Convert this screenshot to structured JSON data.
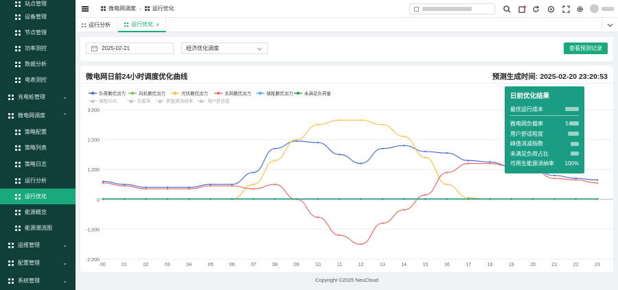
{
  "sidebar": {
    "items": [
      {
        "label": "站点管理",
        "type": "child",
        "active": false
      },
      {
        "label": "设备管理",
        "type": "child",
        "active": false
      },
      {
        "label": "节点管理",
        "type": "child",
        "active": false
      },
      {
        "label": "功率测控",
        "type": "child",
        "active": false
      },
      {
        "label": "数据分析",
        "type": "child",
        "active": false
      },
      {
        "label": "电表测控",
        "type": "child",
        "active": false
      },
      {
        "label": "充电桩管理",
        "type": "parent",
        "active": false,
        "chevron": "chevron-down-icon"
      },
      {
        "label": "微电网调度",
        "type": "parent",
        "active": false,
        "chevron": "chevron-up-icon"
      },
      {
        "label": "策略配置",
        "type": "child",
        "active": false
      },
      {
        "label": "策略列表",
        "type": "child",
        "active": false
      },
      {
        "label": "策略日志",
        "type": "child",
        "active": false
      },
      {
        "label": "运行分析",
        "type": "child",
        "active": false
      },
      {
        "label": "运行优化",
        "type": "child",
        "active": true
      },
      {
        "label": "能源概览",
        "type": "child",
        "active": false
      },
      {
        "label": "能源潮流图",
        "type": "child",
        "active": false
      },
      {
        "label": "运维管理",
        "type": "parent",
        "active": false,
        "chevron": "chevron-down-icon"
      },
      {
        "label": "配置管理",
        "type": "parent",
        "active": false,
        "chevron": "chevron-down-icon"
      },
      {
        "label": "系统管理",
        "type": "parent",
        "active": false,
        "chevron": "chevron-down-icon"
      }
    ]
  },
  "header": {
    "breadcrumb_1": "微电网调度",
    "breadcrumb_sep": "›",
    "breadcrumb_2": "运行优化"
  },
  "tabs": [
    {
      "label": "运行分析",
      "active": false
    },
    {
      "label": "运行优化",
      "active": true,
      "close": "×"
    }
  ],
  "filter": {
    "date": "2025-02-21",
    "mode": "经济优化调度",
    "button": "查看预测记录"
  },
  "card": {
    "title": "微电网日前24小时调度优化曲线",
    "time_label": "预测生成时间: 2025-02-20 23:20:53"
  },
  "result": {
    "title": "日前优化结果",
    "rows": [
      {
        "label": "最优运行成本",
        "value": ""
      },
      {
        "label": "微电网负载率",
        "value": "5"
      },
      {
        "label": "用户舒适程度",
        "value": ""
      },
      {
        "label": "峰值消减指数",
        "value": ""
      },
      {
        "label": "未满足负荷占比",
        "value": ""
      },
      {
        "label": "可再生能源消纳率",
        "value": "100%"
      }
    ]
  },
  "footer": "Copyright ©2025 NeuCloud",
  "colors": {
    "sidebar_bg": "#0f3f38",
    "accent": "#1aa97b",
    "load": "#4b6fce",
    "wind": "#7dc35a",
    "pv": "#f5c446",
    "grid": "#ee6a66",
    "storage": "#5ab3de",
    "unmet": "#2e9e5c"
  },
  "chart_data": {
    "type": "line",
    "title": "微电网日前24小时调度优化曲线",
    "legend": [
      "负荷最优出力",
      "风机最优出力",
      "光伏最优出力",
      "主网最优出力",
      "储能最优出力",
      "未满足负荷量",
      "储能SOC",
      "负载率",
      "新能源消纳率",
      "用户舒适度"
    ],
    "categories": [
      "00",
      "01",
      "02",
      "03",
      "04",
      "05",
      "06",
      "07",
      "08",
      "09",
      "10",
      "11",
      "12",
      "13",
      "14",
      "15",
      "16",
      "17",
      "18",
      "19",
      "20",
      "21",
      "22",
      "23"
    ],
    "yticks": [
      "-2,000",
      "-1,000",
      "0",
      "1,000",
      "2,000",
      "3,000"
    ],
    "ylim": [
      -2000,
      3000
    ],
    "series": [
      {
        "name": "负荷最优出力",
        "color": "#4b6fce",
        "values": [
          600,
          500,
          400,
          400,
          400,
          500,
          500,
          900,
          1700,
          1950,
          1900,
          1500,
          1200,
          1700,
          1800,
          1600,
          1550,
          1300,
          1250,
          1100,
          1000,
          800,
          700,
          650
        ]
      },
      {
        "name": "风机最优出力",
        "color": "#7dc35a",
        "values": [
          0,
          0,
          0,
          0,
          0,
          0,
          0,
          0,
          0,
          0,
          0,
          0,
          0,
          0,
          0,
          0,
          0,
          0,
          0,
          0,
          0,
          0,
          0,
          0
        ]
      },
      {
        "name": "光伏最优出力",
        "color": "#f5c446",
        "values": [
          0,
          0,
          0,
          0,
          0,
          0,
          0,
          500,
          1300,
          2000,
          2500,
          2650,
          2650,
          2500,
          2100,
          1400,
          500,
          50,
          0,
          0,
          0,
          0,
          0,
          0
        ]
      },
      {
        "name": "主网最优出力",
        "color": "#ee6a66",
        "values": [
          550,
          450,
          350,
          350,
          350,
          450,
          450,
          350,
          500,
          0,
          -600,
          -1200,
          -1500,
          -800,
          -350,
          150,
          900,
          1200,
          1200,
          1100,
          1000,
          700,
          650,
          550
        ]
      },
      {
        "name": "储能最优出力",
        "color": "#5ab3de",
        "values": [
          0,
          0,
          0,
          0,
          0,
          0,
          0,
          0,
          0,
          0,
          0,
          0,
          0,
          0,
          0,
          0,
          0,
          0,
          0,
          0,
          0,
          0,
          0,
          0
        ]
      },
      {
        "name": "未满足负荷量",
        "color": "#2e9e5c",
        "values": [
          20,
          20,
          20,
          20,
          20,
          20,
          20,
          20,
          20,
          20,
          20,
          20,
          20,
          20,
          20,
          20,
          20,
          20,
          20,
          20,
          20,
          20,
          20,
          20
        ]
      }
    ]
  }
}
